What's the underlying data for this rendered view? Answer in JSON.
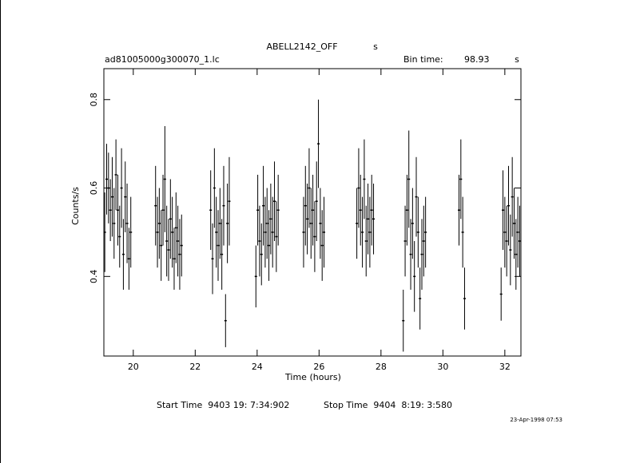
{
  "chart_data": {
    "type": "errorbar",
    "title": "ABELL2142_OFF",
    "title_unit": "s",
    "filename": "ad81005000g300070_1.lc",
    "bin_time_label": "Bin time:",
    "bin_time": 98.93,
    "bin_time_unit": "s",
    "x_label": "Time (hours)",
    "y_label": "Counts/s",
    "start_time": "Start Time  9403 19: 7:34:902",
    "stop_time": "Stop Time  9404  8:19: 3:580",
    "date": "23-Apr-1998 07:53",
    "xlim": [
      19.05,
      32.52
    ],
    "ylim": [
      0.22,
      0.87
    ],
    "xticks": [
      20,
      22,
      24,
      26,
      28,
      30,
      32
    ],
    "yticks": [
      0.4,
      0.6,
      0.8
    ],
    "color": "#000000",
    "x": [
      19.08,
      19.14,
      19.2,
      19.26,
      19.32,
      19.38,
      19.44,
      19.5,
      19.56,
      19.62,
      19.68,
      19.74,
      19.8,
      19.86,
      19.92,
      20.72,
      20.78,
      20.84,
      20.9,
      20.96,
      21.02,
      21.08,
      21.14,
      21.2,
      21.26,
      21.32,
      21.38,
      21.44,
      21.5,
      21.56,
      22.5,
      22.56,
      22.62,
      22.68,
      22.74,
      22.8,
      22.86,
      22.92,
      22.98,
      23.04,
      23.1,
      23.96,
      24.02,
      24.08,
      24.14,
      24.2,
      24.26,
      24.32,
      24.38,
      24.44,
      24.5,
      24.56,
      24.62,
      24.68,
      25.5,
      25.56,
      25.62,
      25.68,
      25.74,
      25.8,
      25.86,
      25.92,
      25.98,
      26.04,
      26.1,
      26.16,
      27.22,
      27.28,
      27.34,
      27.4,
      27.46,
      27.52,
      27.58,
      27.64,
      27.7,
      27.76,
      28.72,
      28.78,
      28.84,
      28.9,
      28.96,
      29.02,
      29.08,
      29.14,
      29.2,
      29.26,
      29.32,
      29.38,
      29.44,
      30.52,
      30.58,
      30.64,
      30.7,
      31.88,
      31.94,
      32.0,
      32.06,
      32.12,
      32.18,
      32.24,
      32.3,
      32.36,
      32.42,
      32.48
    ],
    "values": [
      0.5,
      0.62,
      0.6,
      0.55,
      0.58,
      0.52,
      0.63,
      0.55,
      0.49,
      0.6,
      0.45,
      0.58,
      0.52,
      0.44,
      0.5,
      0.56,
      0.5,
      0.52,
      0.47,
      0.55,
      0.62,
      0.48,
      0.46,
      0.53,
      0.5,
      0.44,
      0.51,
      0.48,
      0.45,
      0.47,
      0.55,
      0.44,
      0.6,
      0.5,
      0.47,
      0.52,
      0.45,
      0.56,
      0.3,
      0.52,
      0.57,
      0.4,
      0.55,
      0.48,
      0.45,
      0.56,
      0.5,
      0.52,
      0.47,
      0.53,
      0.5,
      0.57,
      0.49,
      0.55,
      0.5,
      0.56,
      0.53,
      0.6,
      0.52,
      0.55,
      0.49,
      0.57,
      0.7,
      0.52,
      0.47,
      0.5,
      0.52,
      0.6,
      0.55,
      0.5,
      0.62,
      0.48,
      0.53,
      0.5,
      0.55,
      0.53,
      0.3,
      0.48,
      0.55,
      0.62,
      0.45,
      0.52,
      0.4,
      0.58,
      0.5,
      0.35,
      0.45,
      0.48,
      0.5,
      0.55,
      0.62,
      0.5,
      0.35,
      0.36,
      0.55,
      0.5,
      0.48,
      0.56,
      0.46,
      0.58,
      0.52,
      0.45,
      0.5,
      0.48
    ],
    "errors": [
      0.09,
      0.08,
      0.08,
      0.07,
      0.09,
      0.08,
      0.08,
      0.08,
      0.07,
      0.09,
      0.08,
      0.08,
      0.09,
      0.07,
      0.08,
      0.09,
      0.08,
      0.08,
      0.08,
      0.08,
      0.12,
      0.08,
      0.07,
      0.09,
      0.08,
      0.07,
      0.08,
      0.08,
      0.08,
      0.07,
      0.09,
      0.08,
      0.09,
      0.08,
      0.08,
      0.08,
      0.08,
      0.09,
      0.06,
      0.09,
      0.1,
      0.07,
      0.08,
      0.08,
      0.07,
      0.09,
      0.08,
      0.08,
      0.08,
      0.08,
      0.08,
      0.09,
      0.08,
      0.08,
      0.08,
      0.09,
      0.08,
      0.09,
      0.08,
      0.08,
      0.08,
      0.09,
      0.1,
      0.08,
      0.08,
      0.08,
      0.08,
      0.09,
      0.08,
      0.08,
      0.09,
      0.08,
      0.08,
      0.08,
      0.08,
      0.08,
      0.07,
      0.08,
      0.08,
      0.11,
      0.08,
      0.08,
      0.08,
      0.09,
      0.08,
      0.07,
      0.08,
      0.08,
      0.08,
      0.08,
      0.09,
      0.08,
      0.07,
      0.06,
      0.09,
      0.08,
      0.08,
      0.09,
      0.08,
      0.09,
      0.08,
      0.08,
      0.08,
      0.08
    ]
  }
}
